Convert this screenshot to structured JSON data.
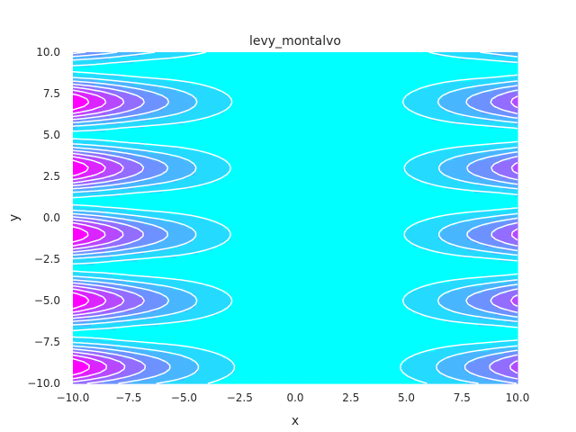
{
  "chart_data": {
    "type": "contour",
    "title": "levy_montalvo",
    "xlabel": "x",
    "ylabel": "y",
    "xlim": [
      -10,
      10
    ],
    "ylim": [
      -10,
      10
    ],
    "grid": false,
    "legend": "none",
    "x_ticks": [
      -10,
      -7.5,
      -5,
      -2.5,
      0,
      2.5,
      5,
      7.5,
      10
    ],
    "y_ticks": [
      -10,
      -7.5,
      -5,
      -2.5,
      0,
      2.5,
      5,
      7.5,
      10
    ],
    "x_tick_labels": [
      "−10.0",
      "−7.5",
      "−5.0",
      "−2.5",
      "0.0",
      "2.5",
      "5.0",
      "7.5",
      "10.0"
    ],
    "y_tick_labels": [
      "−10.0",
      "−7.5",
      "−5.0",
      "−2.5",
      "0.0",
      "2.5",
      "5.0",
      "7.5",
      "10.0"
    ],
    "colormap": "cool",
    "colormap_endpoints": [
      "#00ffff",
      "#ff00ff"
    ],
    "contour_line_color": "#ffffff",
    "function": "levy_montalvo",
    "z_range_estimate": [
      0,
      300
    ],
    "filled_levels": 8
  }
}
